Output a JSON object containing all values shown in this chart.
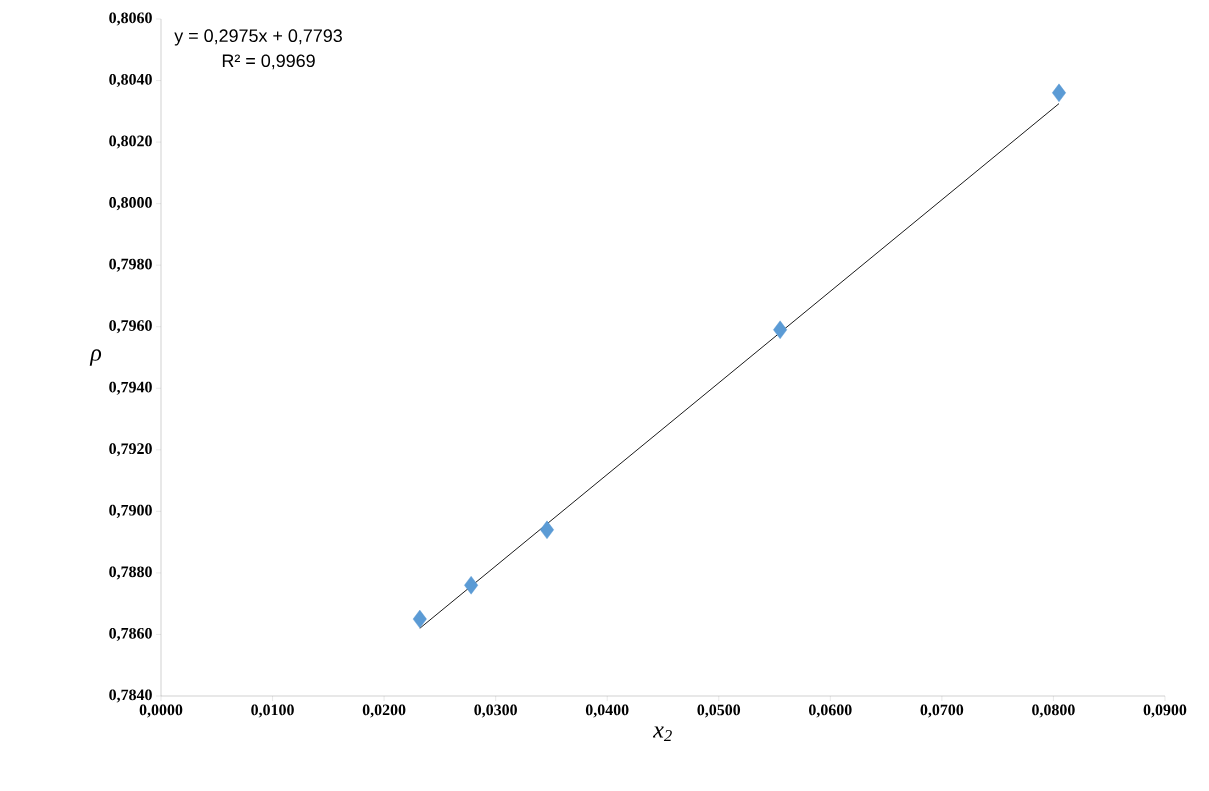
{
  "chart_data": {
    "type": "scatter",
    "xlabel": "x$_{2}$",
    "ylabel": "ρ",
    "annotations": [
      "y = 0,2975x + 0,7793",
      "R² = 0,9969"
    ],
    "series": [
      {
        "color": "#5b9bd5",
        "marker": "diamond",
        "x": [
          0.0232,
          0.0278,
          0.0346,
          0.0555,
          0.0805
        ],
        "values": [
          0.7865,
          0.7876,
          0.7894,
          0.7959,
          0.8036
        ]
      },
      {
        "type": "line",
        "color": "#000000",
        "marker": "none",
        "x": [
          0.0232,
          0.0805
        ],
        "values": [
          0.7862,
          0.80325
        ]
      }
    ],
    "xlim": [
      0,
      0.09
    ],
    "ylim": [
      0.784,
      0.806
    ],
    "xticks": [
      {
        "value": 0,
        "label": "0,0000"
      },
      {
        "value": 0.01,
        "label": "0,0100"
      },
      {
        "value": 0.02,
        "label": "0,0200"
      },
      {
        "value": 0.03,
        "label": "0,0300"
      },
      {
        "value": 0.04,
        "label": "0,0400"
      },
      {
        "value": 0.05,
        "label": "0,0500"
      },
      {
        "value": 0.06,
        "label": "0,0600"
      },
      {
        "value": 0.07,
        "label": "0,0700"
      },
      {
        "value": 0.08,
        "label": "0,0800"
      },
      {
        "value": 0.09,
        "label": "0,0900"
      }
    ],
    "yticks": [
      {
        "value": 0.784,
        "label": "0,7840"
      },
      {
        "value": 0.786,
        "label": "0,7860"
      },
      {
        "value": 0.788,
        "label": "0,7880"
      },
      {
        "value": 0.79,
        "label": "0,7900"
      },
      {
        "value": 0.792,
        "label": "0,7920"
      },
      {
        "value": 0.794,
        "label": "0,7940"
      },
      {
        "value": 0.796,
        "label": "0,7960"
      },
      {
        "value": 0.798,
        "label": "0,7980"
      },
      {
        "value": 0.8,
        "label": "0,8000"
      },
      {
        "value": 0.802,
        "label": "0,8020"
      },
      {
        "value": 0.804,
        "label": "0,8040"
      },
      {
        "value": 0.806,
        "label": "0,8060"
      }
    ]
  }
}
